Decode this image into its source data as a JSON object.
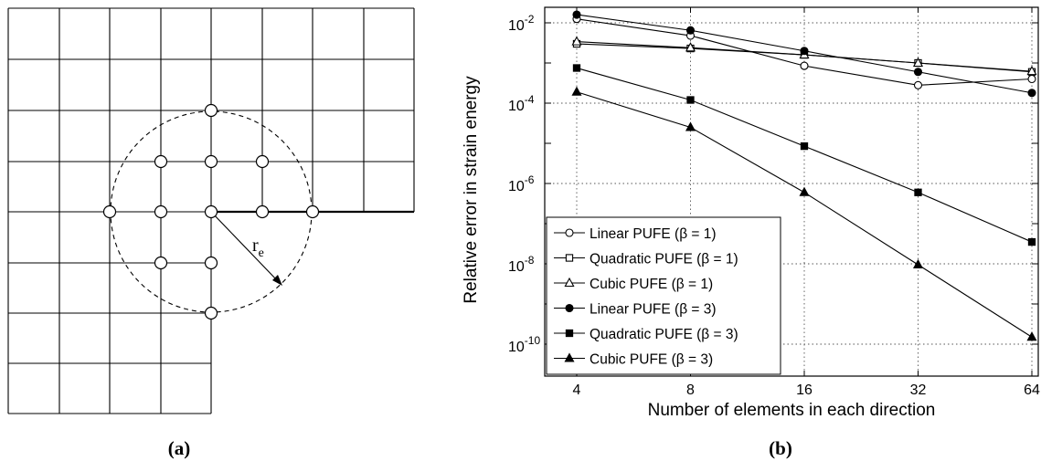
{
  "panel_a": {
    "label": "(a)",
    "radius_label": "r",
    "radius_subscript": "e"
  },
  "panel_b": {
    "label": "(b)"
  },
  "chart_data": {
    "type": "line",
    "xscale": "log2",
    "yscale": "log10",
    "x": [
      4,
      8,
      16,
      32,
      64
    ],
    "xticks": [
      "4",
      "8",
      "16",
      "32",
      "64"
    ],
    "yticks": [
      {
        "base": "10",
        "exp": "-2",
        "value": 0.01
      },
      {
        "base": "10",
        "exp": "-4",
        "value": 0.0001
      },
      {
        "base": "10",
        "exp": "-6",
        "value": 1e-06
      },
      {
        "base": "10",
        "exp": "-8",
        "value": 1e-08
      },
      {
        "base": "10",
        "exp": "-10",
        "value": 1e-10
      }
    ],
    "xlabel": "Number of elements in each direction",
    "ylabel": "Relative error in strain energy",
    "ylim": [
      1e-10,
      0.1
    ],
    "grid": true,
    "legend_position": "bottom-left",
    "series": [
      {
        "name": "Linear PUFE (β = 1)",
        "marker": "circle-open",
        "values": [
          0.0125,
          0.0048,
          0.00085,
          0.00028,
          0.0004
        ]
      },
      {
        "name": "Quadratic PUFE (β = 1)",
        "marker": "square-open",
        "values": [
          0.003,
          0.0023,
          0.0016,
          0.001,
          0.0006
        ]
      },
      {
        "name": "Cubic PUFE (β = 1)",
        "marker": "triangle-open",
        "values": [
          0.0034,
          0.0024,
          0.0016,
          0.001,
          0.00062
        ]
      },
      {
        "name": "Linear PUFE (β = 3)",
        "marker": "circle-filled",
        "values": [
          0.016,
          0.0065,
          0.002,
          0.0006,
          0.00018
        ]
      },
      {
        "name": "Quadratic PUFE (β = 3)",
        "marker": "square-filled",
        "values": [
          0.00075,
          0.00012,
          8.5e-06,
          6e-07,
          3.5e-08
        ]
      },
      {
        "name": "Cubic PUFE (β = 3)",
        "marker": "triangle-filled",
        "values": [
          0.00019,
          2.5e-05,
          6e-07,
          9.5e-09,
          1.5e-10
        ]
      }
    ]
  }
}
